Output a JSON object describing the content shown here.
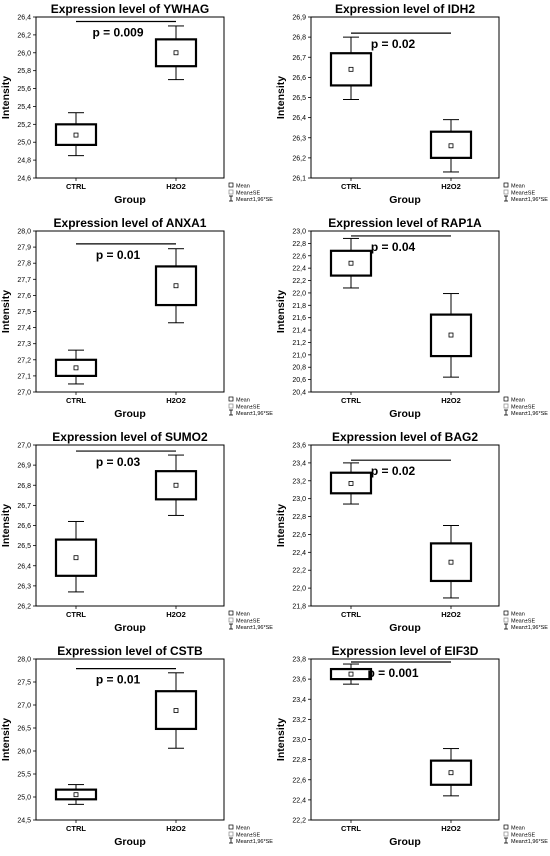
{
  "legend": {
    "mean": "Mean",
    "se": "Mean±SE",
    "ci": "Mean±1,96*SE"
  },
  "chart_data": [
    {
      "type": "box",
      "title": "Expression level of YWHAG",
      "xlabel": "Group",
      "ylabel": "Intensity",
      "categories": [
        "CTRL",
        "H2O2"
      ],
      "ylim": [
        24.6,
        26.4
      ],
      "yticks": [
        24.6,
        24.8,
        25.0,
        25.2,
        25.4,
        25.6,
        25.8,
        26.0,
        26.2,
        26.4
      ],
      "tick_decimals": 1,
      "series": [
        {
          "category": "CTRL",
          "mean": 25.08,
          "se_low": 24.97,
          "se_high": 25.2,
          "ci_low": 24.85,
          "ci_high": 25.33
        },
        {
          "category": "H2O2",
          "mean": 26.0,
          "se_low": 25.85,
          "se_high": 26.15,
          "ci_low": 25.7,
          "ci_high": 26.3
        }
      ],
      "annotation": {
        "text": "p = 0.009",
        "line_y": 26.35
      }
    },
    {
      "type": "box",
      "title": "Expression level of IDH2",
      "xlabel": "Group",
      "ylabel": "Intensity",
      "categories": [
        "CTRL",
        "H2O2"
      ],
      "ylim": [
        26.1,
        26.9
      ],
      "yticks": [
        26.1,
        26.2,
        26.3,
        26.4,
        26.5,
        26.6,
        26.7,
        26.8,
        26.9
      ],
      "tick_decimals": 1,
      "series": [
        {
          "category": "CTRL",
          "mean": 26.64,
          "se_low": 26.56,
          "se_high": 26.72,
          "ci_low": 26.49,
          "ci_high": 26.8
        },
        {
          "category": "H2O2",
          "mean": 26.26,
          "se_low": 26.2,
          "se_high": 26.33,
          "ci_low": 26.13,
          "ci_high": 26.39
        }
      ],
      "annotation": {
        "text": "p = 0.02",
        "line_y": 26.82
      }
    },
    {
      "type": "box",
      "title": "Expression level of ANXA1",
      "xlabel": "Group",
      "ylabel": "Intensity",
      "categories": [
        "CTRL",
        "H2O2"
      ],
      "ylim": [
        27.0,
        28.0
      ],
      "yticks": [
        27.0,
        27.1,
        27.2,
        27.3,
        27.4,
        27.5,
        27.6,
        27.7,
        27.8,
        27.9,
        28.0
      ],
      "tick_decimals": 1,
      "series": [
        {
          "category": "CTRL",
          "mean": 27.15,
          "se_low": 27.1,
          "se_high": 27.2,
          "ci_low": 27.05,
          "ci_high": 27.26
        },
        {
          "category": "H2O2",
          "mean": 27.66,
          "se_low": 27.54,
          "se_high": 27.78,
          "ci_low": 27.43,
          "ci_high": 27.89
        }
      ],
      "annotation": {
        "text": "p = 0.01",
        "line_y": 27.92
      }
    },
    {
      "type": "box",
      "title": "Expression level of RAP1A",
      "xlabel": "Group",
      "ylabel": "Intensity",
      "categories": [
        "CTRL",
        "H2O2"
      ],
      "ylim": [
        20.4,
        23.0
      ],
      "yticks": [
        20.4,
        20.6,
        20.8,
        21.0,
        21.2,
        21.4,
        21.6,
        21.8,
        22.0,
        22.2,
        22.4,
        22.6,
        22.8,
        23.0
      ],
      "tick_decimals": 1,
      "series": [
        {
          "category": "CTRL",
          "mean": 22.48,
          "se_low": 22.28,
          "se_high": 22.68,
          "ci_low": 22.08,
          "ci_high": 22.88
        },
        {
          "category": "H2O2",
          "mean": 21.32,
          "se_low": 20.98,
          "se_high": 21.65,
          "ci_low": 20.64,
          "ci_high": 21.99
        }
      ],
      "annotation": {
        "text": "p = 0.04",
        "line_y": 22.92
      }
    },
    {
      "type": "box",
      "title": "Expression level of SUMO2",
      "xlabel": "Group",
      "ylabel": "Intensity",
      "categories": [
        "CTRL",
        "H2O2"
      ],
      "ylim": [
        26.2,
        27.0
      ],
      "yticks": [
        26.2,
        26.3,
        26.4,
        26.5,
        26.6,
        26.7,
        26.8,
        26.9,
        27.0
      ],
      "tick_decimals": 1,
      "series": [
        {
          "category": "CTRL",
          "mean": 26.44,
          "se_low": 26.35,
          "se_high": 26.53,
          "ci_low": 26.27,
          "ci_high": 26.62
        },
        {
          "category": "H2O2",
          "mean": 26.8,
          "se_low": 26.73,
          "se_high": 26.87,
          "ci_low": 26.65,
          "ci_high": 26.95
        }
      ],
      "annotation": {
        "text": "p = 0.03",
        "line_y": 26.97
      }
    },
    {
      "type": "box",
      "title": "Expression level of BAG2",
      "xlabel": "Group",
      "ylabel": "Intensity",
      "categories": [
        "CTRL",
        "H2O2"
      ],
      "ylim": [
        21.8,
        23.6
      ],
      "yticks": [
        21.8,
        22.0,
        22.2,
        22.4,
        22.6,
        22.8,
        23.0,
        23.2,
        23.4,
        23.6
      ],
      "tick_decimals": 1,
      "series": [
        {
          "category": "CTRL",
          "mean": 23.17,
          "se_low": 23.06,
          "se_high": 23.29,
          "ci_low": 22.94,
          "ci_high": 23.4
        },
        {
          "category": "H2O2",
          "mean": 22.29,
          "se_low": 22.08,
          "se_high": 22.5,
          "ci_low": 21.89,
          "ci_high": 22.7
        }
      ],
      "annotation": {
        "text": "p = 0.02",
        "line_y": 23.43
      }
    },
    {
      "type": "box",
      "title": "Expression level of CSTB",
      "xlabel": "Group",
      "ylabel": "Intensity",
      "categories": [
        "CTRL",
        "H2O2"
      ],
      "ylim": [
        24.5,
        28.0
      ],
      "yticks": [
        24.5,
        25.0,
        25.5,
        26.0,
        26.5,
        27.0,
        27.5,
        28.0
      ],
      "tick_decimals": 1,
      "series": [
        {
          "category": "CTRL",
          "mean": 25.05,
          "se_low": 24.95,
          "se_high": 25.16,
          "ci_low": 24.84,
          "ci_high": 25.27
        },
        {
          "category": "H2O2",
          "mean": 26.88,
          "se_low": 26.48,
          "se_high": 27.3,
          "ci_low": 26.06,
          "ci_high": 27.7
        }
      ],
      "annotation": {
        "text": "p = 0.01",
        "line_y": 27.79
      }
    },
    {
      "type": "box",
      "title": "Expression level of EIF3D",
      "xlabel": "Group",
      "ylabel": "Intensity",
      "categories": [
        "CTRL",
        "H2O2"
      ],
      "ylim": [
        22.2,
        23.8
      ],
      "yticks": [
        22.2,
        22.4,
        22.6,
        22.8,
        23.0,
        23.2,
        23.4,
        23.6,
        23.8
      ],
      "tick_decimals": 1,
      "series": [
        {
          "category": "CTRL",
          "mean": 23.65,
          "se_low": 23.6,
          "se_high": 23.7,
          "ci_low": 23.55,
          "ci_high": 23.75
        },
        {
          "category": "H2O2",
          "mean": 22.67,
          "se_low": 22.55,
          "se_high": 22.79,
          "ci_low": 22.44,
          "ci_high": 22.91
        }
      ],
      "annotation": {
        "text": "p = 0.001",
        "line_y": 23.77
      }
    }
  ]
}
